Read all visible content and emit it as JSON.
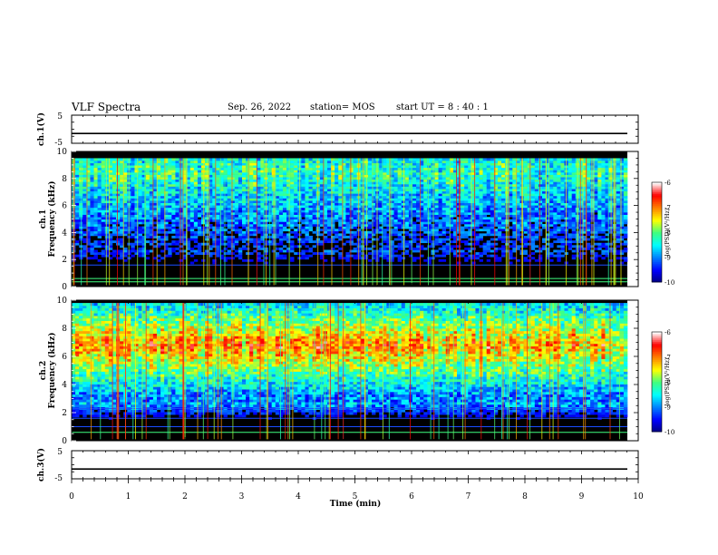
{
  "header": {
    "title": "VLF Spectra",
    "date": "Sep. 26, 2022",
    "station": "station= MOS",
    "start": "start  UT  =   8  : 40 : 1"
  },
  "chart_data": [
    {
      "type": "line",
      "name": "ch1-waveform",
      "ylabel": "ch.1(V)",
      "ylim": [
        -5,
        5
      ],
      "yticks": [
        "5",
        "-5"
      ],
      "x": [
        0,
        10
      ],
      "y": [
        -1.5,
        -1.5
      ]
    },
    {
      "type": "heatmap",
      "name": "ch1-spectrogram",
      "ylabel": "ch.1\nFrequency (kHz)",
      "ylabel_line1": "ch.1",
      "ylabel_line2": "Frequency (kHz)",
      "xlim": [
        0,
        9.8
      ],
      "ylim": [
        0,
        10
      ],
      "yticks": [
        "0",
        "2",
        "4",
        "6",
        "8",
        "10"
      ],
      "band_khz": [
        1.5,
        9.5
      ],
      "peak_khz": 8.5,
      "intensity": "moderate",
      "colorbar": {
        "label": "log(PSD)(V²/Hz)",
        "range": [
          -10,
          -6
        ],
        "ticks": [
          "-6",
          "-7",
          "-8",
          "-9",
          "-10"
        ]
      }
    },
    {
      "type": "heatmap",
      "name": "ch2-spectrogram",
      "ylabel": "ch.2\nFrequency (kHz)",
      "ylabel_line1": "ch.2",
      "ylabel_line2": "Frequency (kHz)",
      "xlim": [
        0,
        9.8
      ],
      "ylim": [
        0,
        10
      ],
      "yticks": [
        "0",
        "2",
        "4",
        "6",
        "8",
        "10"
      ],
      "band_khz": [
        1.5,
        9.8
      ],
      "peak_khz": 6.8,
      "intensity": "strong",
      "colorbar": {
        "label": "log(PSD)(V²/Hz)",
        "range": [
          -10,
          -6
        ],
        "ticks": [
          "-6",
          "-7",
          "-8",
          "-9",
          "-10"
        ]
      }
    },
    {
      "type": "line",
      "name": "ch3-waveform",
      "ylabel": "ch.3(V)",
      "ylim": [
        -5,
        5
      ],
      "yticks": [
        "5",
        "-5"
      ],
      "x": [
        0,
        10
      ],
      "y": [
        -1.5,
        -1.5
      ]
    }
  ],
  "xaxis": {
    "label": "Time (min)",
    "xlim": [
      0,
      10
    ],
    "ticks": [
      "0",
      "1",
      "2",
      "3",
      "4",
      "5",
      "6",
      "7",
      "8",
      "9",
      "10"
    ]
  },
  "colors": {
    "background_dark": "#000000",
    "colormap": [
      "#00007f",
      "#0000ff",
      "#0080ff",
      "#00ffff",
      "#40ff80",
      "#ffff00",
      "#ff8000",
      "#ff0000",
      "#ffffff"
    ]
  }
}
